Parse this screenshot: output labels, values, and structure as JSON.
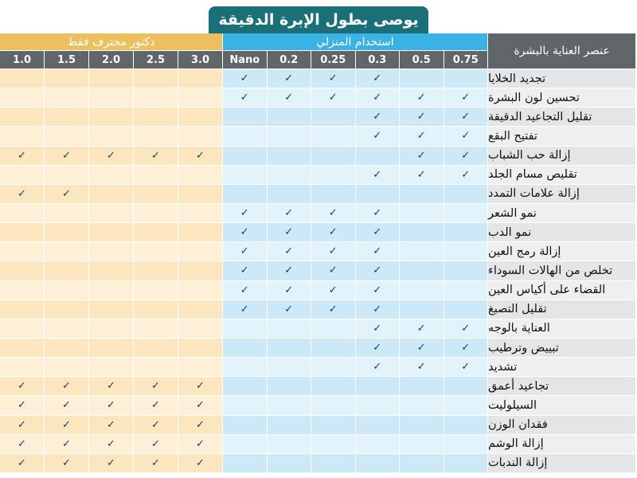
{
  "title": "يوصى بطول الإبرة الدقيقة",
  "headers": {
    "doctor_group": "دكتور محترف فقط",
    "home_group": "استخدام المنزلي",
    "element_label": "عنصر العناية بالبشرة",
    "sizes": [
      "1.0",
      "1.5",
      "2.0",
      "2.5",
      "3.0",
      "Nano",
      "0.2",
      "0.25",
      "0.3",
      "0.5",
      "0.75"
    ]
  },
  "check_mark": "✓",
  "rows": [
    {
      "label": "تجديد الخلايا",
      "checks": [
        0,
        0,
        0,
        0,
        0,
        1,
        1,
        1,
        1,
        0,
        0
      ]
    },
    {
      "label": "تحسين لون البشرة",
      "checks": [
        0,
        0,
        0,
        0,
        0,
        1,
        1,
        1,
        1,
        1,
        1
      ]
    },
    {
      "label": "تقليل التجاعيد الدقيقة",
      "checks": [
        0,
        0,
        0,
        0,
        0,
        0,
        0,
        0,
        1,
        1,
        1
      ]
    },
    {
      "label": "تفتيح البقع",
      "checks": [
        0,
        0,
        0,
        0,
        0,
        0,
        0,
        0,
        1,
        1,
        1
      ]
    },
    {
      "label": "إزالة حب الشباب",
      "checks": [
        1,
        1,
        1,
        1,
        1,
        0,
        0,
        0,
        0,
        1,
        1
      ]
    },
    {
      "label": "تقليص مسام الجلد",
      "checks": [
        0,
        0,
        0,
        0,
        0,
        0,
        0,
        0,
        1,
        1,
        1
      ]
    },
    {
      "label": "إزالة علامات التمدد",
      "checks": [
        1,
        1,
        0,
        0,
        0,
        0,
        0,
        0,
        0,
        0,
        0
      ]
    },
    {
      "label": "نمو الشعر",
      "checks": [
        0,
        0,
        0,
        0,
        0,
        1,
        1,
        1,
        1,
        0,
        0
      ]
    },
    {
      "label": "نمو الدب",
      "checks": [
        0,
        0,
        0,
        0,
        0,
        1,
        1,
        1,
        1,
        0,
        0
      ]
    },
    {
      "label": "إزالة رمج العين",
      "checks": [
        0,
        0,
        0,
        0,
        0,
        1,
        1,
        1,
        1,
        0,
        0
      ]
    },
    {
      "label": "تخلص من الهالات السوداء",
      "checks": [
        0,
        0,
        0,
        0,
        0,
        1,
        1,
        1,
        1,
        0,
        0
      ]
    },
    {
      "label": "القضاء على أكياس العين",
      "checks": [
        0,
        0,
        0,
        0,
        0,
        1,
        1,
        1,
        1,
        0,
        0
      ]
    },
    {
      "label": "تقليل التصبغ",
      "checks": [
        0,
        0,
        0,
        0,
        0,
        1,
        1,
        1,
        1,
        0,
        0
      ]
    },
    {
      "label": "العناية بالوجه",
      "checks": [
        0,
        0,
        0,
        0,
        0,
        0,
        0,
        0,
        1,
        1,
        1
      ]
    },
    {
      "label": "تبييض وترطيب",
      "checks": [
        0,
        0,
        0,
        0,
        0,
        0,
        0,
        0,
        1,
        1,
        1
      ]
    },
    {
      "label": "تشديد",
      "checks": [
        0,
        0,
        0,
        0,
        0,
        0,
        0,
        0,
        1,
        1,
        1
      ]
    },
    {
      "label": "تجاعيد أعمق",
      "checks": [
        1,
        1,
        1,
        1,
        1,
        0,
        0,
        0,
        0,
        0,
        0
      ]
    },
    {
      "label": "السيلوليت",
      "checks": [
        1,
        1,
        1,
        1,
        1,
        0,
        0,
        0,
        0,
        0,
        0
      ]
    },
    {
      "label": "فقدان الوزن",
      "checks": [
        1,
        1,
        1,
        1,
        1,
        0,
        0,
        0,
        0,
        0,
        0
      ]
    },
    {
      "label": "إزالة الوشم",
      "checks": [
        1,
        1,
        1,
        1,
        1,
        0,
        0,
        0,
        0,
        0,
        0
      ]
    },
    {
      "label": "إزالة الندبات",
      "checks": [
        1,
        1,
        1,
        1,
        1,
        0,
        0,
        0,
        0,
        0,
        0
      ]
    }
  ]
}
